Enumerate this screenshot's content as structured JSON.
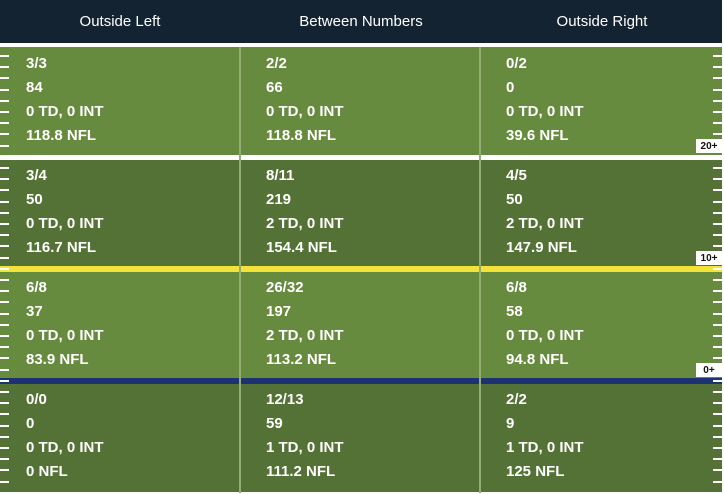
{
  "columns": [
    "Outside Left",
    "Between Numbers",
    "Outside Right"
  ],
  "rows": [
    {
      "yard_marker": "20+",
      "cells": [
        [
          "3/3",
          "84",
          "0 TD, 0 INT",
          "118.8 NFL"
        ],
        [
          "2/2",
          "66",
          "0 TD, 0 INT",
          "118.8 NFL"
        ],
        [
          "0/2",
          "0",
          "0 TD, 0 INT",
          "39.6 NFL"
        ]
      ]
    },
    {
      "yard_marker": "10+",
      "cells": [
        [
          "3/4",
          "50",
          "0 TD, 0 INT",
          "116.7 NFL"
        ],
        [
          "8/11",
          "219",
          "2 TD, 0 INT",
          "154.4 NFL"
        ],
        [
          "4/5",
          "50",
          "2 TD, 0 INT",
          "147.9 NFL"
        ]
      ]
    },
    {
      "yard_marker": "0+",
      "cells": [
        [
          "6/8",
          "37",
          "0 TD, 0 INT",
          "83.9 NFL"
        ],
        [
          "26/32",
          "197",
          "2 TD, 0 INT",
          "113.2 NFL"
        ],
        [
          "6/8",
          "58",
          "0 TD, 0 INT",
          "94.8 NFL"
        ]
      ]
    },
    {
      "cells": [
        [
          "0/0",
          "0",
          "0 TD, 0 INT",
          "0 NFL"
        ],
        [
          "12/13",
          "59",
          "1 TD, 0 INT",
          "111.2 NFL"
        ],
        [
          "2/2",
          "9",
          "1 TD, 0 INT",
          "125 NFL"
        ]
      ]
    }
  ],
  "colors": {
    "header_bg": "#142331",
    "field_light": "#668b3f",
    "field_dark": "#557236",
    "line_20": "#ffffff",
    "line_10": "#f2e23a",
    "line_0": "#1d3272"
  }
}
